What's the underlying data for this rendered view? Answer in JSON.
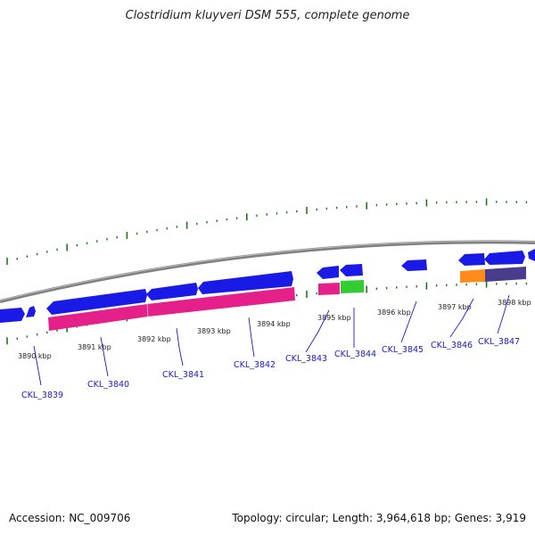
{
  "title": "Clostridium kluyveri DSM 555, complete genome",
  "footer": {
    "accession": "Accession: NC_009706",
    "topology": "Topology: circular; Length: 3,964,618 bp; Genes: 3,919"
  },
  "kbp_labels": [
    "3890 kbp",
    "3891 kbp",
    "3892 kbp",
    "3893 kbp",
    "3894 kbp",
    "3895 kbp",
    "3896 kbp",
    "3897 kbp",
    "3898 kbp"
  ],
  "gene_labels": [
    "CKL_3839",
    "CKL_3840",
    "CKL_3841",
    "CKL_3842",
    "CKL_3843",
    "CKL_3844",
    "CKL_3845",
    "CKL_3846",
    "CKL_3847"
  ],
  "colors": {
    "backbone": "#808080",
    "gene_blue": "#1a1ae6",
    "cds_pink": "#e6208a",
    "cds_green": "#33cc33",
    "cds_orange": "#ff8c1a",
    "cds_purple": "#4a3c8c",
    "tick_green": "#1a7a1a",
    "label_blue": "#1a1acc"
  }
}
